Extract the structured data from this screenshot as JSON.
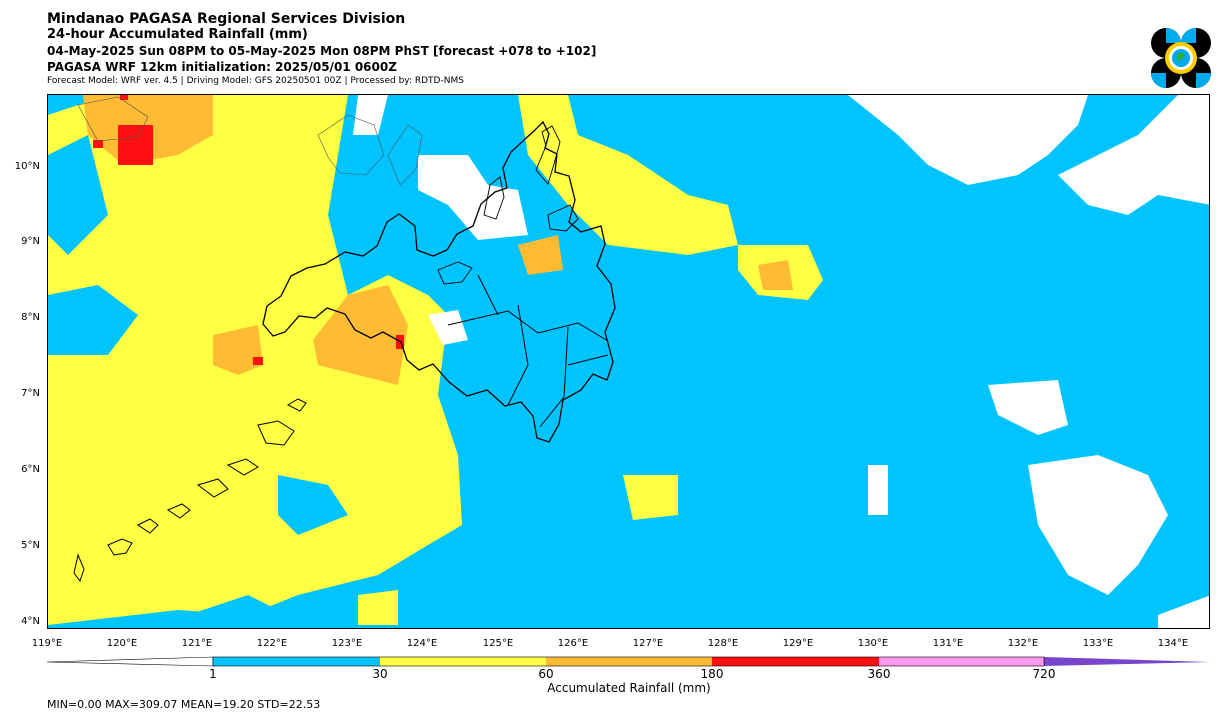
{
  "header": {
    "title": "Mindanao PAGASA Regional Services Division",
    "product": "24-hour Accumulated Rainfall (mm)",
    "valid_period": "04-May-2025 Sun 08PM to 05-May-2025 Mon 08PM PhST [forecast +078 to +102]",
    "initialization": "PAGASA WRF 12km initialization: 2025/05/01 0600Z",
    "model_info": "Forecast Model: WRF ver. 4.5 | Driving Model: GFS 20250501 00Z | Processed by: RDTD-NMS"
  },
  "map": {
    "lon_range": [
      119,
      134.5
    ],
    "lat_range": [
      3.9,
      11.0
    ],
    "lat_ticks": [
      "10°N",
      "9°N",
      "8°N",
      "7°N",
      "6°N",
      "5°N",
      "4°N"
    ],
    "lon_ticks": [
      "119°E",
      "120°E",
      "121°E",
      "122°E",
      "123°E",
      "124°E",
      "125°E",
      "126°E",
      "127°E",
      "128°E",
      "129°E",
      "130°E",
      "131°E",
      "132°E",
      "133°E",
      "134°E"
    ]
  },
  "colorbar": {
    "title": "Accumulated Rainfall (mm)",
    "labels": [
      "1",
      "30",
      "60",
      "180",
      "360",
      "720"
    ],
    "colors": [
      "#ffffff",
      "#00c4ff",
      "#ffff44",
      "#ffbb33",
      "#ff0f0f",
      "#ff99ee",
      "#7744cc"
    ]
  },
  "stats": {
    "text": "MIN=0.00   MAX=309.07   MEAN=19.20   STD=22.53"
  },
  "colors": {
    "none": "#ffffff",
    "light": "#00c4ff",
    "moderate": "#ffff44",
    "heavy": "#ffbb33",
    "intense": "#ff0f0f",
    "coastline": "#000000"
  },
  "logo": {
    "icon": "pagasa-logo-icon"
  }
}
